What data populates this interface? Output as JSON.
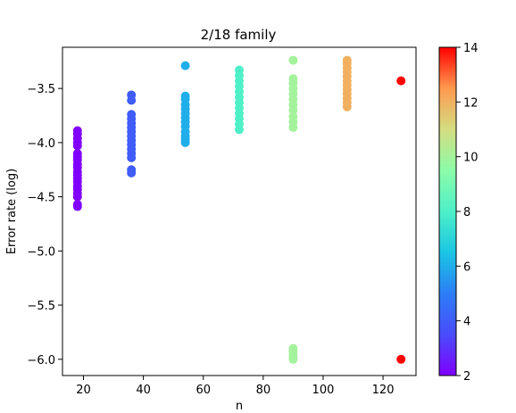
{
  "chart_data": {
    "type": "scatter",
    "title": "2/18 family",
    "xlabel": "n",
    "ylabel": "Error rate (log)",
    "xlim": [
      13,
      131
    ],
    "ylim": [
      -6.15,
      -3.12
    ],
    "xticks": [
      20,
      40,
      60,
      80,
      100,
      120
    ],
    "yticks": [
      -6.0,
      -5.5,
      -5.0,
      -4.5,
      -4.0,
      -3.5
    ],
    "ytick_labels": [
      "−6.0",
      "−5.5",
      "−5.0",
      "−4.5",
      "−4.0",
      "−3.5"
    ],
    "grid": false,
    "colorbar": {
      "colormap": "rainbow",
      "range": [
        2,
        14
      ],
      "ticks": [
        2,
        4,
        6,
        8,
        10,
        12,
        14
      ]
    },
    "groups": [
      {
        "x": 18,
        "color_value": 2,
        "y": [
          -3.89,
          -3.92,
          -3.96,
          -4.0,
          -4.03,
          -4.1,
          -4.13,
          -4.16,
          -4.2,
          -4.23,
          -4.27,
          -4.3,
          -4.33,
          -4.36,
          -4.4,
          -4.43,
          -4.47,
          -4.5,
          -4.57,
          -4.59
        ]
      },
      {
        "x": 36,
        "color_value": 4,
        "y": [
          -3.56,
          -3.61,
          -3.74,
          -3.78,
          -3.82,
          -3.86,
          -3.9,
          -3.94,
          -3.98,
          -4.02,
          -4.06,
          -4.1,
          -4.14,
          -4.25,
          -4.28
        ]
      },
      {
        "x": 54,
        "color_value": 6,
        "y": [
          -3.29,
          -3.57,
          -3.6,
          -3.65,
          -3.69,
          -3.73,
          -3.77,
          -3.81,
          -3.85,
          -3.9,
          -3.94,
          -3.97,
          -4.0
        ]
      },
      {
        "x": 72,
        "color_value": 8,
        "y": [
          -3.33,
          -3.38,
          -3.43,
          -3.48,
          -3.53,
          -3.58,
          -3.63,
          -3.68,
          -3.73,
          -3.78,
          -3.83,
          -3.88
        ]
      },
      {
        "x": 90,
        "color_value": 10,
        "y": [
          -3.24,
          -3.41,
          -3.45,
          -3.5,
          -3.55,
          -3.6,
          -3.65,
          -3.7,
          -3.76,
          -3.81,
          -3.86,
          -5.9,
          -5.93,
          -5.96,
          -5.99,
          -6.0
        ]
      },
      {
        "x": 108,
        "color_value": 12,
        "y": [
          -3.24,
          -3.27,
          -3.31,
          -3.35,
          -3.39,
          -3.43,
          -3.47,
          -3.51,
          -3.55,
          -3.59,
          -3.63,
          -3.67
        ]
      },
      {
        "x": 126,
        "color_value": 14,
        "y": [
          -3.43,
          -6.0
        ]
      }
    ]
  }
}
